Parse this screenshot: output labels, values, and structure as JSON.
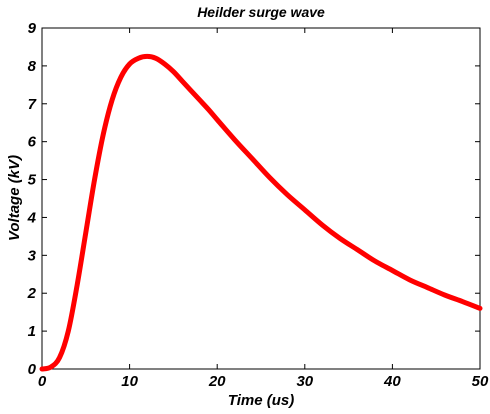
{
  "chart_data": {
    "type": "line",
    "title": "Heilder surge wave",
    "xlabel": "Time (us)",
    "ylabel": "Voltage (kV)",
    "xlim": [
      0,
      50
    ],
    "ylim": [
      0,
      9
    ],
    "xticks": [
      0,
      10,
      20,
      30,
      40,
      50
    ],
    "yticks": [
      0,
      1,
      2,
      3,
      4,
      5,
      6,
      7,
      8,
      9
    ],
    "grid": false,
    "legend": "none",
    "line_color": "#ff0000",
    "series": [
      {
        "x": [
          0,
          1,
          2,
          3,
          4,
          5,
          6,
          7,
          8,
          9,
          10,
          11,
          12,
          13,
          14,
          15,
          16,
          17,
          18,
          19,
          20,
          22,
          24,
          26,
          28,
          30,
          32,
          34,
          36,
          38,
          40,
          42,
          44,
          46,
          48,
          50
        ],
        "values": [
          0.0,
          0.05,
          0.3,
          1.0,
          2.2,
          3.6,
          5.0,
          6.2,
          7.1,
          7.7,
          8.05,
          8.2,
          8.25,
          8.2,
          8.05,
          7.85,
          7.6,
          7.35,
          7.1,
          6.85,
          6.58,
          6.05,
          5.55,
          5.05,
          4.6,
          4.2,
          3.8,
          3.45,
          3.15,
          2.85,
          2.6,
          2.35,
          2.15,
          1.95,
          1.78,
          1.6
        ]
      }
    ]
  }
}
